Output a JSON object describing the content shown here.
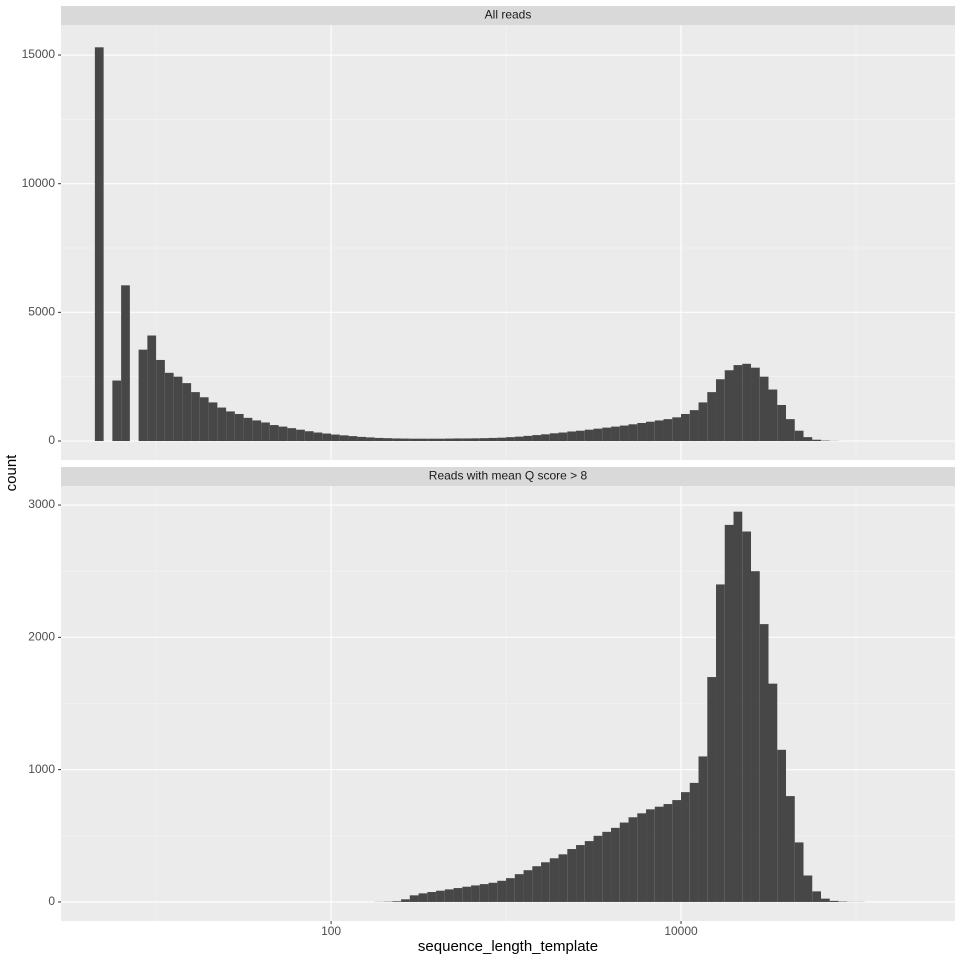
{
  "chart_data": [
    {
      "type": "histogram",
      "title": "All reads",
      "ylabel": "count",
      "color": "#474747",
      "xlog": true,
      "grid": true,
      "xlim": [
        2.86,
        368000
      ],
      "xticks": [
        100,
        10000
      ],
      "ylim": [
        -738,
        16167
      ],
      "yticks": [
        0,
        5000,
        10000,
        15000
      ],
      "bins": [
        4.467,
        5.012,
        5.623,
        6.31,
        7.079,
        7.943,
        8.913,
        10,
        11.22,
        12.59,
        14.13,
        15.85,
        17.78,
        19.95,
        22.39,
        25.12,
        28.18,
        31.62,
        35.48,
        39.81,
        44.67,
        50.12,
        56.23,
        63.1,
        70.79,
        79.43,
        89.13,
        100,
        112.2,
        125.9,
        141.3,
        158.5,
        177.8,
        199.5,
        223.9,
        251.2,
        281.8,
        316.2,
        354.8,
        398.1,
        446.7,
        501.2,
        562.3,
        631,
        707.9,
        794.3,
        891.3,
        1000,
        1122,
        1259,
        1413,
        1585,
        1778,
        1995,
        2239,
        2512,
        2818,
        3162,
        3548,
        3981,
        4467,
        5012,
        5623,
        6310,
        7079,
        7943,
        8913,
        10000,
        11220,
        12590,
        14130,
        15850,
        17780,
        19950,
        22390,
        25120,
        28180,
        31620,
        35480,
        39810,
        44670,
        50120,
        56230,
        63100,
        70790,
        79430,
        89130,
        100000,
        112200,
        125900,
        141300,
        158500,
        177800,
        199500,
        223900
      ],
      "values": [
        15300,
        0,
        2350,
        6050,
        0,
        3550,
        4100,
        3150,
        2650,
        2500,
        2250,
        1900,
        1700,
        1500,
        1300,
        1150,
        1050,
        900,
        800,
        720,
        620,
        560,
        500,
        440,
        380,
        330,
        290,
        250,
        220,
        190,
        160,
        140,
        120,
        110,
        100,
        95,
        90,
        90,
        90,
        90,
        95,
        100,
        100,
        105,
        110,
        120,
        130,
        150,
        170,
        200,
        230,
        260,
        300,
        330,
        370,
        400,
        440,
        480,
        520,
        560,
        600,
        650,
        700,
        750,
        800,
        850,
        920,
        1050,
        1200,
        1500,
        1900,
        2400,
        2750,
        2950,
        3000,
        2850,
        2500,
        2000,
        1400,
        850,
        400,
        150,
        50,
        15,
        5,
        0,
        0,
        0,
        0,
        0,
        0,
        0,
        0,
        0
      ]
    },
    {
      "type": "histogram",
      "title": "Reads with mean Q score > 8",
      "xlabel": "sequence_length_template",
      "color": "#474747",
      "xlog": true,
      "grid": true,
      "xlim": [
        2.86,
        368000
      ],
      "xticks": [
        100,
        10000
      ],
      "ylim": [
        -144,
        3144
      ],
      "yticks": [
        0,
        1000,
        2000,
        3000
      ],
      "bins": [
        4.467,
        5.012,
        5.623,
        6.31,
        7.079,
        7.943,
        8.913,
        10,
        11.22,
        12.59,
        14.13,
        15.85,
        17.78,
        19.95,
        22.39,
        25.12,
        28.18,
        31.62,
        35.48,
        39.81,
        44.67,
        50.12,
        56.23,
        63.1,
        70.79,
        79.43,
        89.13,
        100,
        112.2,
        125.9,
        141.3,
        158.5,
        177.8,
        199.5,
        223.9,
        251.2,
        281.8,
        316.2,
        354.8,
        398.1,
        446.7,
        501.2,
        562.3,
        631,
        707.9,
        794.3,
        891.3,
        1000,
        1122,
        1259,
        1413,
        1585,
        1778,
        1995,
        2239,
        2512,
        2818,
        3162,
        3548,
        3981,
        4467,
        5012,
        5623,
        6310,
        7079,
        7943,
        8913,
        10000,
        11220,
        12590,
        14130,
        15850,
        17780,
        19950,
        22390,
        25120,
        28180,
        31620,
        35480,
        39810,
        44670,
        50120,
        56230,
        63100,
        70790,
        79430,
        89130,
        100000,
        112200,
        125900,
        141300,
        158500,
        177800,
        199500,
        223900
      ],
      "values": [
        0,
        0,
        0,
        0,
        0,
        0,
        0,
        0,
        0,
        0,
        0,
        0,
        0,
        0,
        0,
        0,
        0,
        0,
        0,
        0,
        0,
        0,
        0,
        0,
        0,
        0,
        0,
        0,
        0,
        0,
        0,
        0,
        1,
        2,
        5,
        20,
        50,
        65,
        75,
        85,
        95,
        105,
        115,
        125,
        135,
        145,
        160,
        180,
        210,
        240,
        270,
        300,
        330,
        360,
        400,
        430,
        460,
        500,
        530,
        560,
        600,
        640,
        670,
        700,
        720,
        740,
        770,
        830,
        900,
        1100,
        1700,
        2400,
        2850,
        2950,
        2800,
        2500,
        2100,
        1650,
        1150,
        800,
        450,
        200,
        80,
        25,
        8,
        3,
        1,
        1,
        0,
        0,
        0,
        0,
        0,
        0
      ]
    }
  ]
}
